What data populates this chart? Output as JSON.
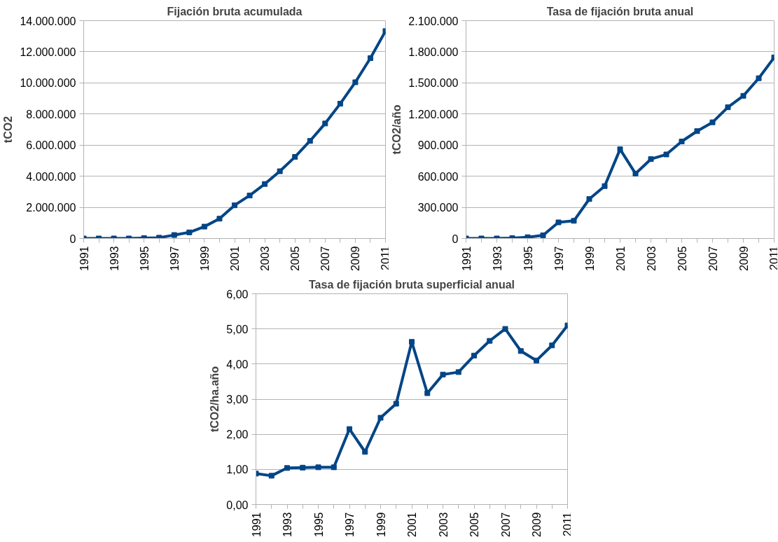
{
  "chart_data": [
    {
      "type": "line",
      "title": "Fijación bruta acumulada",
      "ylabel": "tCO2",
      "categories": [
        "1991",
        null,
        "1993",
        null,
        "1995",
        null,
        "1997",
        null,
        "1999",
        null,
        "2001",
        null,
        "2003",
        null,
        "2005",
        null,
        "2007",
        null,
        "2009",
        null,
        "2011"
      ],
      "series": [
        {
          "color": "#004586",
          "values": [
            0,
            0,
            0,
            0,
            20000,
            50000,
            220000,
            390000,
            760000,
            1270000,
            2130000,
            2760000,
            3500000,
            4320000,
            5240000,
            6270000,
            7390000,
            8660000,
            10040000,
            11590000,
            13330000
          ]
        }
      ],
      "ylim": [
        0,
        14000000
      ],
      "yticks": [
        0,
        {
          "value": 2000000,
          "label": "2.000.000"
        },
        {
          "value": 4000000,
          "label": "4.000.000"
        },
        {
          "value": 6000000,
          "label": "6.000.000"
        },
        {
          "value": 8000000,
          "label": "8.000.000"
        },
        {
          "value": 10000000,
          "label": "10.000.000"
        },
        {
          "value": 12000000,
          "label": "12.000.000"
        },
        {
          "value": 14000000,
          "label": "14.000.000"
        }
      ],
      "grid": "y",
      "marker": "square",
      "line_style": "solid"
    },
    {
      "type": "line",
      "title": "Tasa de fijación bruta anual",
      "ylabel": "tCO2/año",
      "categories": [
        "1991",
        null,
        "1993",
        null,
        "1995",
        null,
        "1997",
        null,
        "1999",
        null,
        "2001",
        null,
        "2003",
        null,
        "2005",
        null,
        "2007",
        null,
        "2009",
        null,
        "2011"
      ],
      "series": [
        {
          "color": "#004586",
          "values": [
            0,
            0,
            0,
            3000,
            12000,
            30000,
            155000,
            170000,
            380000,
            505000,
            860000,
            625000,
            765000,
            810000,
            935000,
            1035000,
            1120000,
            1265000,
            1375000,
            1545000,
            1745000
          ]
        }
      ],
      "ylim": [
        0,
        2100000
      ],
      "yticks": [
        0,
        {
          "value": 300000,
          "label": "300.000"
        },
        {
          "value": 600000,
          "label": "600.000"
        },
        {
          "value": 900000,
          "label": "900.000"
        },
        {
          "value": 1200000,
          "label": "1.200.000"
        },
        {
          "value": 1500000,
          "label": "1.500.000"
        },
        {
          "value": 1800000,
          "label": "1.800.000"
        },
        {
          "value": 2100000,
          "label": "2.100.000"
        }
      ],
      "grid": "y",
      "marker": "square",
      "line_style": "solid"
    },
    {
      "type": "line",
      "title": "Tasa de fijación bruta superficial anual",
      "ylabel": "tCO2/ha.año",
      "categories": [
        "1991",
        null,
        "1993",
        null,
        "1995",
        null,
        "1997",
        null,
        "1999",
        null,
        "2001",
        null,
        "2003",
        null,
        "2005",
        null,
        "2007",
        null,
        "2009",
        null,
        "2011"
      ],
      "series": [
        {
          "color": "#004586",
          "values": [
            0.88,
            0.82,
            1.04,
            1.05,
            1.06,
            1.06,
            2.15,
            1.5,
            2.47,
            2.87,
            4.63,
            3.17,
            3.7,
            3.77,
            4.24,
            4.66,
            5.0,
            4.37,
            4.1,
            4.53,
            5.1
          ]
        }
      ],
      "ylim": [
        0,
        6
      ],
      "yticks": [
        {
          "value": 0,
          "label": "0,00"
        },
        {
          "value": 1,
          "label": "1,00"
        },
        {
          "value": 2,
          "label": "2,00"
        },
        {
          "value": 3,
          "label": "3,00"
        },
        {
          "value": 4,
          "label": "4,00"
        },
        {
          "value": 5,
          "label": "5,00"
        },
        {
          "value": 6,
          "label": "6,00"
        }
      ],
      "grid": "y",
      "marker": "square",
      "line_style": "solid"
    }
  ]
}
